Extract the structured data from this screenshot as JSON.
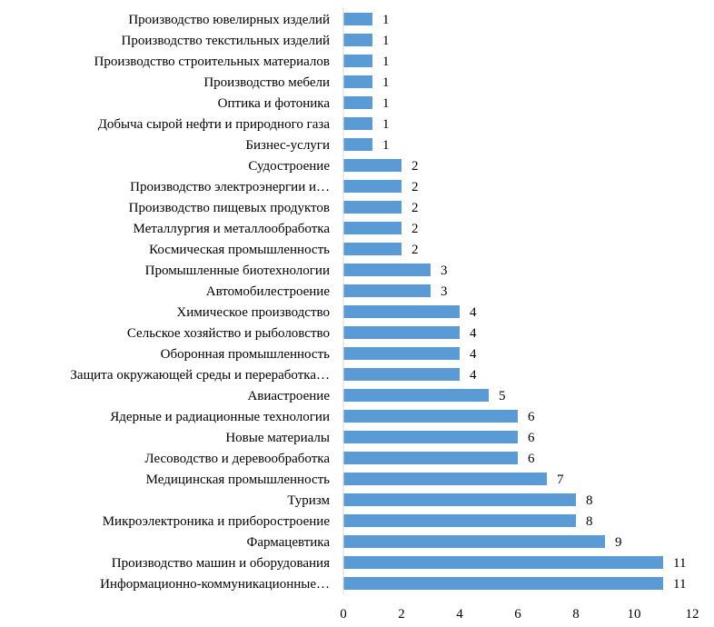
{
  "chart_data": {
    "type": "bar",
    "orientation": "horizontal",
    "title": "",
    "xlabel": "",
    "ylabel": "",
    "xlim": [
      0,
      12
    ],
    "xticks": [
      "0",
      "2",
      "4",
      "6",
      "8",
      "10",
      "12"
    ],
    "grid": false,
    "bar_color": "#5B9BD5",
    "categories": [
      "Производство ювелирных изделий",
      "Производство текстильных изделий",
      "Производство строительных материалов",
      "Производство мебели",
      "Оптика и фотоника",
      "Добыча сырой нефти и природного газа",
      "Бизнес-услуги",
      "Судостроение",
      "Производство электроэнергии и…",
      "Производство пищевых продуктов",
      "Металлургия и металлообработка",
      "Космическая промышленность",
      "Промышленные биотехнологии",
      "Автомобилестроение",
      "Химическое производство",
      "Сельское хозяйство и рыболовство",
      "Оборонная промышленность",
      "Защита окружающей среды и переработка…",
      "Авиастроение",
      "Ядерные и радиационные технологии",
      "Новые материалы",
      "Лесоводство и деревообработка",
      "Медицинская промышленность",
      "Туризм",
      "Микроэлектроника и приборостроение",
      "Фармацевтика",
      "Производство машин и оборудования",
      "Информационно-коммуникационные…"
    ],
    "values": [
      1,
      1,
      1,
      1,
      1,
      1,
      1,
      2,
      2,
      2,
      2,
      2,
      3,
      3,
      4,
      4,
      4,
      4,
      5,
      6,
      6,
      6,
      7,
      8,
      8,
      9,
      11,
      11
    ]
  }
}
